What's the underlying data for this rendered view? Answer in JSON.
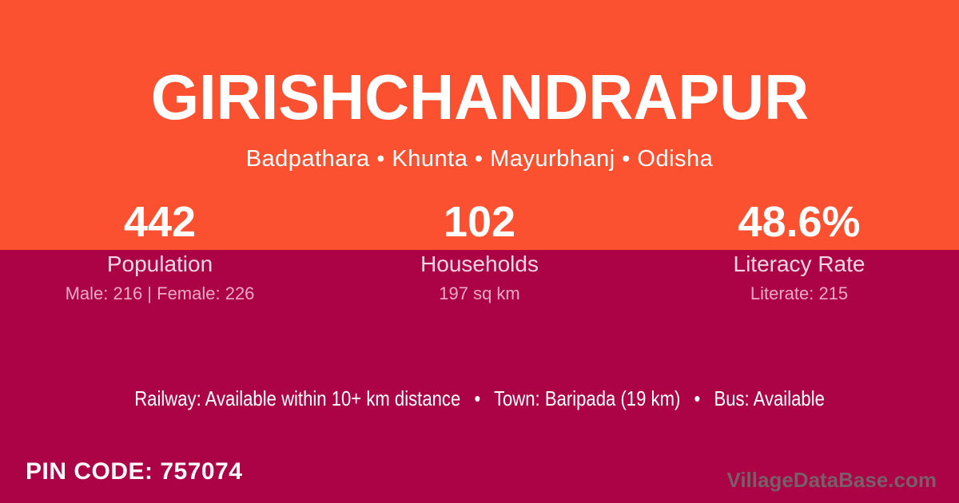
{
  "colors": {
    "band_top_orange": "#FC5130",
    "band_bottom_crimson": "#AC0246",
    "stat_label_pink": "#F6D6E5",
    "stat_detail_pink": "#EEA9C6",
    "text_white": "#FFFFFF",
    "watermark_gray": "#7A5866"
  },
  "header": {
    "title": "GIRISHCHANDRAPUR",
    "subtitle": "Badpathara • Khunta • Mayurbhanj • Odisha"
  },
  "stats": [
    {
      "value": "442",
      "label": "Population",
      "detail": "Male: 216 | Female: 226"
    },
    {
      "value": "102",
      "label": "Households",
      "detail": "197 sq km"
    },
    {
      "value": "48.6%",
      "label": "Literacy Rate",
      "detail": "Literate: 215"
    }
  ],
  "amenities": {
    "text": "Railway: Available within 10+ km distance  •  Town: Baripada (19 km)  •  Bus: Available"
  },
  "footer": {
    "pin_code": "PIN CODE: 757074",
    "watermark": "VillageDataBase.com"
  }
}
